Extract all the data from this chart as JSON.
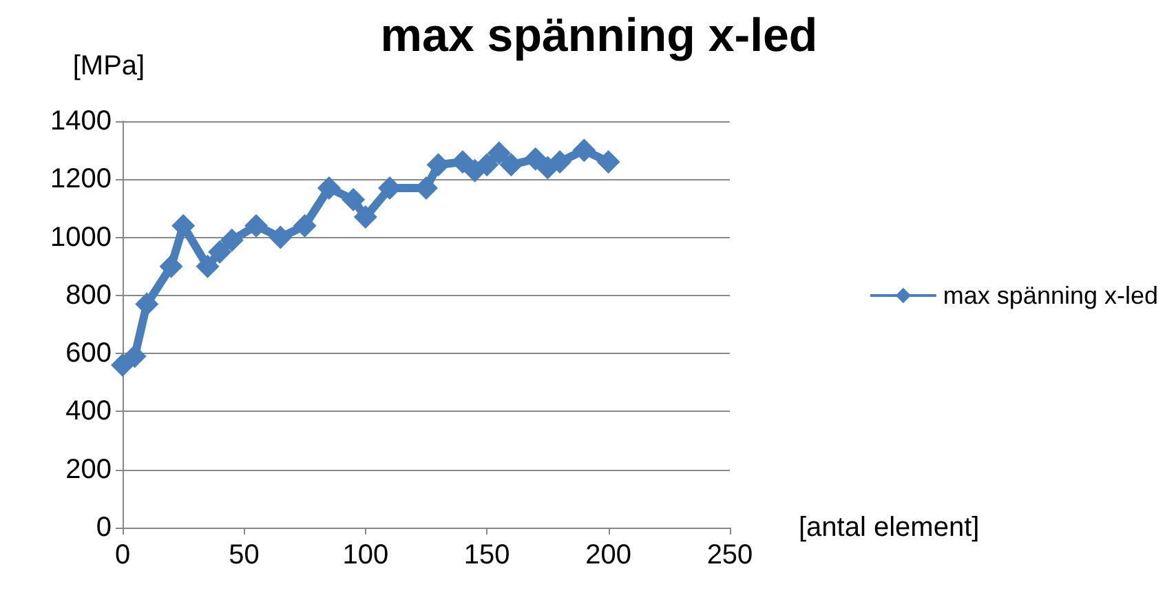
{
  "chart_data": {
    "type": "line",
    "title": "max spänning x-led",
    "xlabel": "[antal element]",
    "ylabel": "[MPa]",
    "series": [
      {
        "name": "max spänning x-led",
        "color": "#4a7ebb",
        "x": [
          0,
          5,
          10,
          20,
          25,
          35,
          40,
          45,
          55,
          65,
          75,
          85,
          95,
          100,
          110,
          125,
          130,
          140,
          145,
          150,
          155,
          160,
          170,
          175,
          180,
          190,
          200
        ],
        "values": [
          560,
          590,
          770,
          900,
          1040,
          900,
          950,
          990,
          1040,
          1000,
          1040,
          1170,
          1130,
          1070,
          1170,
          1170,
          1250,
          1260,
          1230,
          1250,
          1290,
          1250,
          1270,
          1240,
          1260,
          1300,
          1260
        ]
      }
    ],
    "xlim": [
      0,
      250
    ],
    "xticks": [
      0,
      50,
      100,
      150,
      200,
      250
    ],
    "ylim": [
      0,
      1400
    ],
    "yticks": [
      0,
      200,
      400,
      600,
      800,
      1000,
      1200,
      1400
    ],
    "grid": "y",
    "legend": "right",
    "marker": "diamond",
    "line_style": "solid"
  }
}
